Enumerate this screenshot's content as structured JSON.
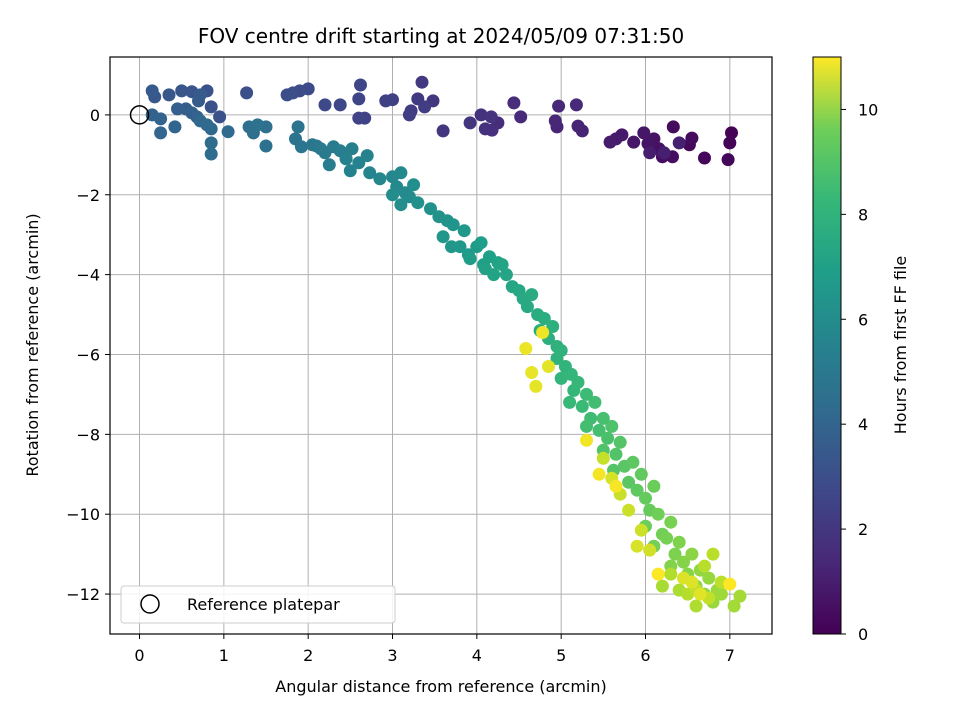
{
  "chart_data": {
    "type": "scatter",
    "title": "FOV centre drift starting at 2024/05/09 07:31:50",
    "xlabel": "Angular distance from reference (arcmin)",
    "ylabel": "Rotation from reference (arcmin)",
    "xlim": [
      -0.35,
      7.5
    ],
    "ylim": [
      -13.0,
      1.45
    ],
    "xticks": [
      0,
      1,
      2,
      3,
      4,
      5,
      6,
      7
    ],
    "yticks": [
      0,
      -2,
      -4,
      -6,
      -8,
      -10,
      -12
    ],
    "xtick_labels": [
      "0",
      "1",
      "2",
      "3",
      "4",
      "5",
      "6",
      "7"
    ],
    "ytick_labels": [
      "0",
      "−2",
      "−4",
      "−6",
      "−8",
      "−10",
      "−12"
    ],
    "grid": true,
    "colormap": "viridis",
    "colorbar": {
      "label": "Hours from first FF file",
      "range": [
        0,
        11
      ],
      "ticks": [
        0,
        2,
        4,
        6,
        8,
        10
      ],
      "tick_labels": [
        "0",
        "2",
        "4",
        "6",
        "8",
        "10"
      ]
    },
    "legend": {
      "placement": "lower-left",
      "entries": [
        "Reference platepar"
      ]
    },
    "reference_point": {
      "x": 0,
      "y": 0
    },
    "series": [
      {
        "name": "Reference platepar",
        "points": [
          [
            0,
            0
          ]
        ]
      },
      {
        "points": [
          [
            7.02,
            -0.45,
            0.05
          ],
          [
            7.0,
            -0.7,
            0.1
          ],
          [
            6.98,
            -1.12,
            0.15
          ],
          [
            6.7,
            -1.08,
            0.2
          ],
          [
            6.52,
            -0.75,
            0.25
          ],
          [
            6.55,
            -0.58,
            0.3
          ],
          [
            6.33,
            -0.3,
            0.35
          ],
          [
            6.32,
            -1.05,
            0.4
          ],
          [
            6.2,
            -1.05,
            0.45
          ],
          [
            6.16,
            -0.85,
            0.5
          ],
          [
            6.1,
            -0.6,
            0.55
          ],
          [
            6.03,
            -0.72,
            0.6
          ],
          [
            5.98,
            -0.45,
            0.65
          ],
          [
            5.86,
            -0.68,
            0.7
          ],
          [
            5.72,
            -0.5,
            0.75
          ],
          [
            5.65,
            -0.6,
            0.8
          ],
          [
            5.58,
            -0.68,
            0.85
          ],
          [
            6.05,
            -0.95,
            0.9
          ],
          [
            6.22,
            -0.95,
            0.95
          ],
          [
            6.4,
            -0.7,
            1.0
          ],
          [
            5.25,
            -0.4,
            1.05
          ],
          [
            5.2,
            -0.28,
            1.1
          ],
          [
            4.95,
            -0.3,
            1.15
          ],
          [
            4.93,
            -0.15,
            1.2
          ],
          [
            4.97,
            0.22,
            1.25
          ],
          [
            5.18,
            0.25,
            1.3
          ],
          [
            4.52,
            -0.05,
            1.35
          ],
          [
            4.44,
            0.3,
            1.4
          ],
          [
            4.25,
            -0.2,
            1.45
          ],
          [
            4.18,
            -0.38,
            1.5
          ],
          [
            4.1,
            -0.35,
            1.55
          ],
          [
            4.05,
            0.0,
            1.6
          ],
          [
            4.17,
            -0.05,
            1.65
          ],
          [
            3.92,
            -0.2,
            1.7
          ],
          [
            3.6,
            -0.4,
            1.75
          ],
          [
            3.48,
            0.35,
            1.8
          ],
          [
            3.35,
            0.82,
            1.85
          ],
          [
            3.3,
            0.4,
            1.9
          ],
          [
            3.38,
            0.2,
            1.95
          ],
          [
            3.22,
            0.1,
            2.0
          ],
          [
            3.2,
            0.0,
            2.05
          ],
          [
            3.0,
            0.38,
            2.1
          ],
          [
            2.92,
            0.35,
            2.15
          ],
          [
            2.67,
            -0.08,
            2.2
          ],
          [
            2.6,
            -0.08,
            2.25
          ],
          [
            2.6,
            0.4,
            2.3
          ],
          [
            2.62,
            0.75,
            2.35
          ],
          [
            2.38,
            0.25,
            2.4
          ],
          [
            2.2,
            0.25,
            2.45
          ],
          [
            2.0,
            0.65,
            2.5
          ],
          [
            1.9,
            0.6,
            2.55
          ],
          [
            1.82,
            0.55,
            2.6
          ],
          [
            1.75,
            0.5,
            2.65
          ],
          [
            1.27,
            0.55,
            2.7
          ],
          [
            0.95,
            -0.05,
            2.75
          ],
          [
            0.85,
            0.2,
            2.8
          ],
          [
            0.8,
            0.6,
            2.85
          ],
          [
            0.62,
            0.58,
            2.9
          ],
          [
            0.5,
            0.6,
            2.95
          ],
          [
            0.35,
            0.5,
            3.0
          ],
          [
            0.18,
            0.45,
            3.05
          ],
          [
            0.15,
            0.6,
            3.1
          ],
          [
            0.72,
            0.5,
            3.15
          ],
          [
            0.7,
            0.35,
            3.2
          ],
          [
            0.55,
            0.15,
            3.25
          ],
          [
            0.45,
            0.15,
            3.3
          ],
          [
            0.62,
            0.05,
            3.35
          ],
          [
            0.68,
            -0.05,
            3.4
          ],
          [
            0.15,
            0.0,
            3.45
          ],
          [
            0.25,
            -0.1,
            3.5
          ],
          [
            0.42,
            -0.3,
            3.55
          ],
          [
            0.25,
            -0.45,
            3.6
          ],
          [
            0.72,
            -0.15,
            3.65
          ],
          [
            0.85,
            -0.35,
            3.7
          ],
          [
            0.8,
            -0.25,
            3.75
          ],
          [
            1.05,
            -0.42,
            3.8
          ],
          [
            0.85,
            -0.7,
            3.85
          ],
          [
            0.85,
            -0.98,
            3.9
          ],
          [
            1.3,
            -0.3,
            3.95
          ],
          [
            1.35,
            -0.45,
            4.0
          ],
          [
            1.5,
            -0.3,
            4.05
          ],
          [
            1.5,
            -0.78,
            4.1
          ],
          [
            1.4,
            -0.25,
            4.15
          ],
          [
            1.88,
            -0.3,
            4.2
          ],
          [
            1.85,
            -0.6,
            4.25
          ],
          [
            1.92,
            -0.8,
            4.3
          ],
          [
            2.05,
            -0.75,
            4.35
          ],
          [
            2.1,
            -0.78,
            4.4
          ],
          [
            2.15,
            -0.85,
            4.45
          ],
          [
            2.2,
            -0.95,
            4.5
          ],
          [
            2.3,
            -0.8,
            4.55
          ],
          [
            2.25,
            -1.25,
            4.6
          ],
          [
            2.38,
            -0.9,
            4.65
          ],
          [
            2.45,
            -1.1,
            4.7
          ],
          [
            2.52,
            -0.85,
            4.75
          ],
          [
            2.45,
            -1.1,
            4.8
          ],
          [
            2.5,
            -1.4,
            4.85
          ],
          [
            2.6,
            -1.2,
            4.9
          ],
          [
            2.7,
            -1.02,
            4.95
          ],
          [
            2.73,
            -1.45,
            5.0
          ],
          [
            2.85,
            -1.6,
            5.05
          ],
          [
            3.0,
            -1.55,
            5.1
          ],
          [
            3.1,
            -1.45,
            5.15
          ],
          [
            3.05,
            -1.8,
            5.2
          ],
          [
            3.15,
            -1.95,
            5.25
          ],
          [
            3.2,
            -2.05,
            5.3
          ],
          [
            3.0,
            -2.0,
            5.35
          ],
          [
            3.1,
            -2.25,
            5.4
          ],
          [
            3.25,
            -1.75,
            5.45
          ],
          [
            3.3,
            -2.2,
            5.5
          ],
          [
            3.45,
            -2.35,
            5.55
          ],
          [
            3.55,
            -2.55,
            5.6
          ],
          [
            3.65,
            -2.65,
            5.65
          ],
          [
            3.72,
            -2.75,
            5.7
          ],
          [
            3.6,
            -3.05,
            5.75
          ],
          [
            3.7,
            -3.3,
            5.8
          ],
          [
            3.85,
            -2.9,
            5.85
          ],
          [
            3.8,
            -3.3,
            5.9
          ],
          [
            3.9,
            -3.5,
            5.95
          ],
          [
            4.0,
            -3.3,
            6.0
          ],
          [
            3.92,
            -3.6,
            6.05
          ],
          [
            4.05,
            -3.2,
            6.1
          ],
          [
            4.08,
            -3.75,
            6.15
          ],
          [
            4.15,
            -3.55,
            6.2
          ],
          [
            4.1,
            -3.85,
            6.25
          ],
          [
            4.25,
            -3.7,
            6.3
          ],
          [
            4.2,
            -4.0,
            6.35
          ],
          [
            4.3,
            -3.75,
            6.4
          ],
          [
            4.35,
            -4.0,
            6.45
          ],
          [
            4.42,
            -4.3,
            6.5
          ],
          [
            4.5,
            -4.4,
            6.55
          ],
          [
            4.55,
            -4.6,
            6.6
          ],
          [
            4.6,
            -4.8,
            6.65
          ],
          [
            4.65,
            -4.5,
            6.7
          ],
          [
            4.72,
            -5.0,
            6.75
          ],
          [
            4.75,
            -5.4,
            6.8
          ],
          [
            4.8,
            -5.1,
            6.85
          ],
          [
            4.85,
            -5.6,
            6.9
          ],
          [
            4.9,
            -5.3,
            6.95
          ],
          [
            4.95,
            -5.8,
            7.0
          ],
          [
            5.0,
            -5.9,
            7.05
          ],
          [
            4.95,
            -6.1,
            7.1
          ],
          [
            5.05,
            -6.3,
            7.15
          ],
          [
            5.0,
            -6.6,
            7.2
          ],
          [
            5.12,
            -6.5,
            7.25
          ],
          [
            5.15,
            -6.9,
            7.3
          ],
          [
            5.2,
            -6.7,
            7.35
          ],
          [
            5.1,
            -7.2,
            7.4
          ],
          [
            5.25,
            -7.3,
            7.45
          ],
          [
            5.3,
            -7.0,
            7.5
          ],
          [
            5.35,
            -7.6,
            7.55
          ],
          [
            5.4,
            -7.2,
            7.6
          ],
          [
            5.3,
            -7.8,
            7.65
          ],
          [
            5.45,
            -7.9,
            7.7
          ],
          [
            5.5,
            -7.6,
            7.75
          ],
          [
            5.55,
            -8.1,
            7.8
          ],
          [
            5.6,
            -7.8,
            7.85
          ],
          [
            5.5,
            -8.4,
            7.9
          ],
          [
            5.65,
            -8.5,
            7.95
          ],
          [
            5.7,
            -8.2,
            8.0
          ],
          [
            5.62,
            -8.9,
            8.05
          ],
          [
            5.75,
            -8.8,
            8.1
          ],
          [
            5.8,
            -9.2,
            8.15
          ],
          [
            5.85,
            -8.7,
            8.2
          ],
          [
            5.9,
            -9.4,
            8.25
          ],
          [
            5.95,
            -9.0,
            8.3
          ],
          [
            6.0,
            -9.6,
            8.35
          ],
          [
            6.05,
            -9.9,
            8.4
          ],
          [
            6.1,
            -9.3,
            8.45
          ],
          [
            6.0,
            -10.3,
            8.5
          ],
          [
            6.15,
            -10.0,
            8.55
          ],
          [
            6.2,
            -10.5,
            8.6
          ],
          [
            6.1,
            -10.8,
            8.65
          ],
          [
            6.25,
            -10.6,
            8.7
          ],
          [
            6.3,
            -10.2,
            8.75
          ],
          [
            6.35,
            -11.0,
            8.8
          ],
          [
            6.4,
            -10.7,
            8.85
          ],
          [
            6.3,
            -11.3,
            8.9
          ],
          [
            6.45,
            -11.2,
            8.95
          ],
          [
            6.5,
            -11.5,
            9.0
          ],
          [
            6.55,
            -11.0,
            9.05
          ],
          [
            6.6,
            -11.8,
            9.1
          ],
          [
            6.65,
            -11.4,
            9.15
          ],
          [
            6.7,
            -12.0,
            9.2
          ],
          [
            6.75,
            -11.6,
            9.25
          ],
          [
            6.8,
            -12.2,
            9.3
          ],
          [
            6.85,
            -11.9,
            9.35
          ],
          [
            6.9,
            -12.0,
            9.4
          ],
          [
            7.05,
            -12.3,
            9.45
          ],
          [
            7.12,
            -12.05,
            9.5
          ],
          [
            6.2,
            -11.8,
            9.55
          ],
          [
            6.4,
            -11.9,
            9.6
          ],
          [
            6.6,
            -12.3,
            9.65
          ],
          [
            6.3,
            -11.5,
            9.7
          ],
          [
            6.5,
            -12.0,
            9.75
          ],
          [
            6.7,
            -11.3,
            9.8
          ],
          [
            6.8,
            -11.0,
            9.85
          ],
          [
            6.9,
            -11.7,
            9.9
          ],
          [
            6.6,
            -11.9,
            9.95
          ],
          [
            6.75,
            -12.1,
            10.0
          ],
          [
            5.5,
            -8.6,
            10.05
          ],
          [
            5.7,
            -9.5,
            10.1
          ],
          [
            5.8,
            -9.9,
            10.15
          ],
          [
            5.95,
            -10.4,
            10.2
          ],
          [
            6.05,
            -10.9,
            10.25
          ],
          [
            5.6,
            -9.1,
            10.3
          ],
          [
            5.9,
            -10.8,
            10.35
          ],
          [
            6.45,
            -11.6,
            10.4
          ],
          [
            6.55,
            -11.7,
            10.45
          ],
          [
            6.65,
            -12.0,
            10.5
          ],
          [
            4.85,
            -6.3,
            10.55
          ],
          [
            4.7,
            -6.8,
            10.6
          ],
          [
            4.65,
            -6.45,
            10.65
          ],
          [
            4.58,
            -5.85,
            10.7
          ],
          [
            4.78,
            -5.45,
            10.75
          ],
          [
            5.3,
            -8.15,
            10.8
          ],
          [
            5.45,
            -9.0,
            10.85
          ],
          [
            5.65,
            -9.3,
            10.9
          ],
          [
            6.15,
            -11.5,
            10.95
          ],
          [
            7.0,
            -11.75,
            11.0
          ]
        ]
      }
    ]
  }
}
